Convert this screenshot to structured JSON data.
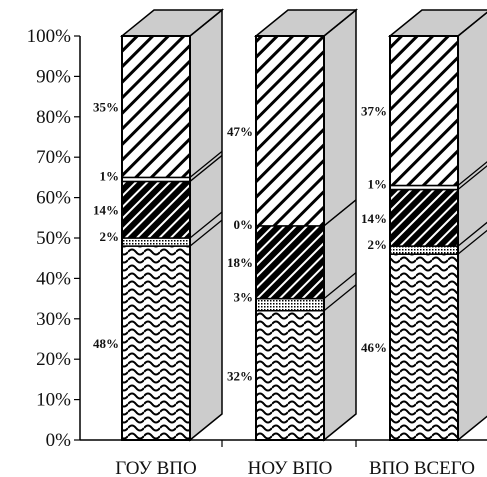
{
  "chart_data": {
    "type": "bar",
    "stacked": true,
    "percent": true,
    "style_3d": true,
    "categories": [
      "ГОУ ВПО",
      "НОУ ВПО",
      "ВПО ВСЕГО"
    ],
    "series": [
      {
        "pattern": "waves",
        "values": [
          48,
          32,
          46
        ],
        "labels": [
          "48%",
          "32%",
          "46%"
        ]
      },
      {
        "pattern": "dots",
        "values": [
          2,
          3,
          2
        ],
        "labels": [
          "2%",
          "3%",
          "2%"
        ]
      },
      {
        "pattern": "dense-hatch",
        "values": [
          14,
          18,
          14
        ],
        "labels": [
          "14%",
          "18%",
          "14%"
        ]
      },
      {
        "pattern": "white",
        "values": [
          1,
          0,
          1
        ],
        "labels": [
          "1%",
          "0%",
          "1%"
        ]
      },
      {
        "pattern": "hatch",
        "values": [
          35,
          47,
          37
        ],
        "labels": [
          "35%",
          "47%",
          "37%"
        ]
      }
    ],
    "ylim": [
      0,
      100
    ],
    "yticks": [
      "0%",
      "10%",
      "20%",
      "30%",
      "40%",
      "50%",
      "60%",
      "70%",
      "80%",
      "90%",
      "100%"
    ],
    "colors": {
      "front_stroke": "#000000",
      "side_face": "#cccccc",
      "bar_back": "#ffffff"
    }
  }
}
